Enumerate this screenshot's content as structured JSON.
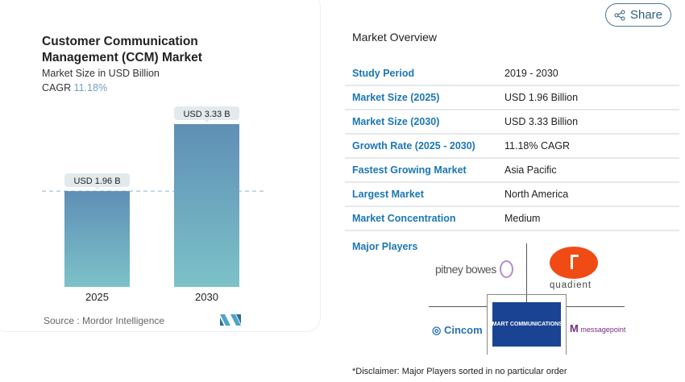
{
  "chart_data": {
    "type": "bar",
    "title": "Customer Communication Management (CCM) Market",
    "subtitle": "Market Size in USD Billion",
    "cagr_label": "CAGR",
    "cagr_value": "11.18%",
    "categories": [
      "2025",
      "2030"
    ],
    "values": [
      1.96,
      3.33
    ],
    "data_labels": [
      "USD 1.96 B",
      "USD 3.33 B"
    ],
    "ylim": [
      0,
      3.33
    ],
    "grid": false,
    "colors": {
      "bar_top": "#5f8fb6",
      "bar_bottom": "#7cc2c8",
      "reference_line": "#8fb3cf"
    },
    "source": "Source :  Mordor Intelligence"
  },
  "share": {
    "label": "Share",
    "icon": "share-icon"
  },
  "overview": {
    "title": "Market Overview",
    "rows": [
      {
        "label": "Study Period",
        "value": "2019 - 2030"
      },
      {
        "label": "Market Size (2025)",
        "value": "USD 1.96 Billion"
      },
      {
        "label": "Market Size (2030)",
        "value": "USD 3.33 Billion"
      },
      {
        "label": "Growth Rate (2025 - 2030)",
        "value": "11.18% CAGR"
      },
      {
        "label": "Fastest Growing Market",
        "value": "Asia Pacific"
      },
      {
        "label": "Largest Market",
        "value": "North America"
      },
      {
        "label": "Market Concentration",
        "value": "Medium"
      }
    ],
    "major_players_label": "Major Players",
    "players": [
      "pitney bowes",
      "quadient",
      "Cincom",
      "SMART COMMUNICATIONS",
      "messagepoint"
    ],
    "disclaimer": "*Disclaimer: Major Players sorted in no particular order"
  }
}
